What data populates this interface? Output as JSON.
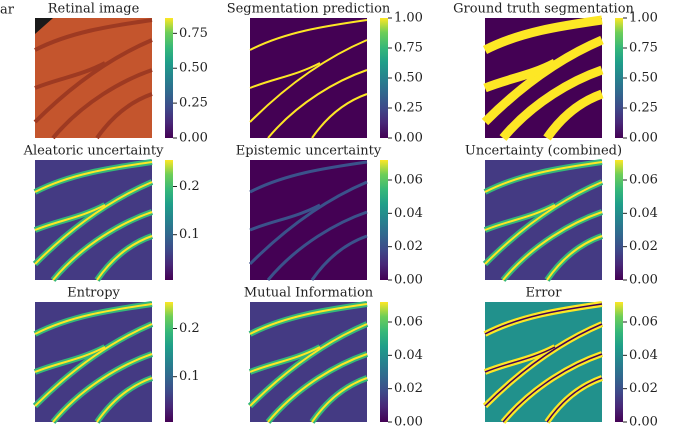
{
  "corner_text": "ar",
  "chart_data": [
    {
      "type": "image",
      "title": "Retinal image",
      "colormap": "viridis",
      "ylim": [
        0,
        0.86
      ],
      "yticks": [
        {
          "value": 0,
          "label": "0.00"
        },
        0.25,
        {
          "value": 0.5,
          "label": "0.50"
        },
        0.75
      ]
    },
    {
      "type": "image",
      "title": "Segmentation prediction",
      "colormap": "viridis",
      "ylim": [
        0,
        1
      ],
      "yticks": [
        {
          "value": 0,
          "label": "0.00"
        },
        0.25,
        {
          "value": 0.5,
          "label": "0.50"
        },
        0.75,
        {
          "value": 1,
          "label": "1.00"
        }
      ]
    },
    {
      "type": "image",
      "title": "Ground truth segmentation",
      "colormap": "viridis",
      "ylim": [
        0,
        1
      ],
      "yticks": [
        {
          "value": 0,
          "label": "0.00"
        },
        0.25,
        {
          "value": 0.5,
          "label": "0.50"
        },
        0.75,
        {
          "value": 1,
          "label": "1.00"
        }
      ]
    },
    {
      "type": "image",
      "title": "Aleatoric uncertainty",
      "colormap": "viridis",
      "ylim": [
        0.006,
        0.255
      ],
      "yticks": [
        0.1,
        0.2
      ]
    },
    {
      "type": "image",
      "title": "Epistemic uncertainty",
      "colormap": "viridis",
      "ylim": [
        0,
        0.072
      ],
      "yticks": [
        {
          "value": 0,
          "label": "0.00"
        },
        0.02,
        0.04,
        0.06
      ]
    },
    {
      "type": "image",
      "title": "Uncertainty (combined)",
      "colormap": "viridis",
      "ylim": [
        0,
        0.072
      ],
      "yticks": [
        {
          "value": 0,
          "label": "0.00"
        },
        0.02,
        0.04,
        0.06
      ]
    },
    {
      "type": "image",
      "title": "Entropy",
      "colormap": "viridis",
      "ylim": [
        0.006,
        0.255
      ],
      "yticks": [
        0.1,
        0.2
      ]
    },
    {
      "type": "image",
      "title": "Mutual Information",
      "colormap": "viridis",
      "ylim": [
        0,
        0.072
      ],
      "yticks": [
        {
          "value": 0,
          "label": "0.00"
        },
        0.02,
        0.04,
        0.06
      ]
    },
    {
      "type": "image",
      "title": "Error",
      "colormap": "viridis",
      "ylim": [
        0,
        0.072
      ],
      "yticks": [
        {
          "value": 0,
          "label": "0.00"
        },
        0.02,
        0.04,
        0.06
      ]
    }
  ]
}
